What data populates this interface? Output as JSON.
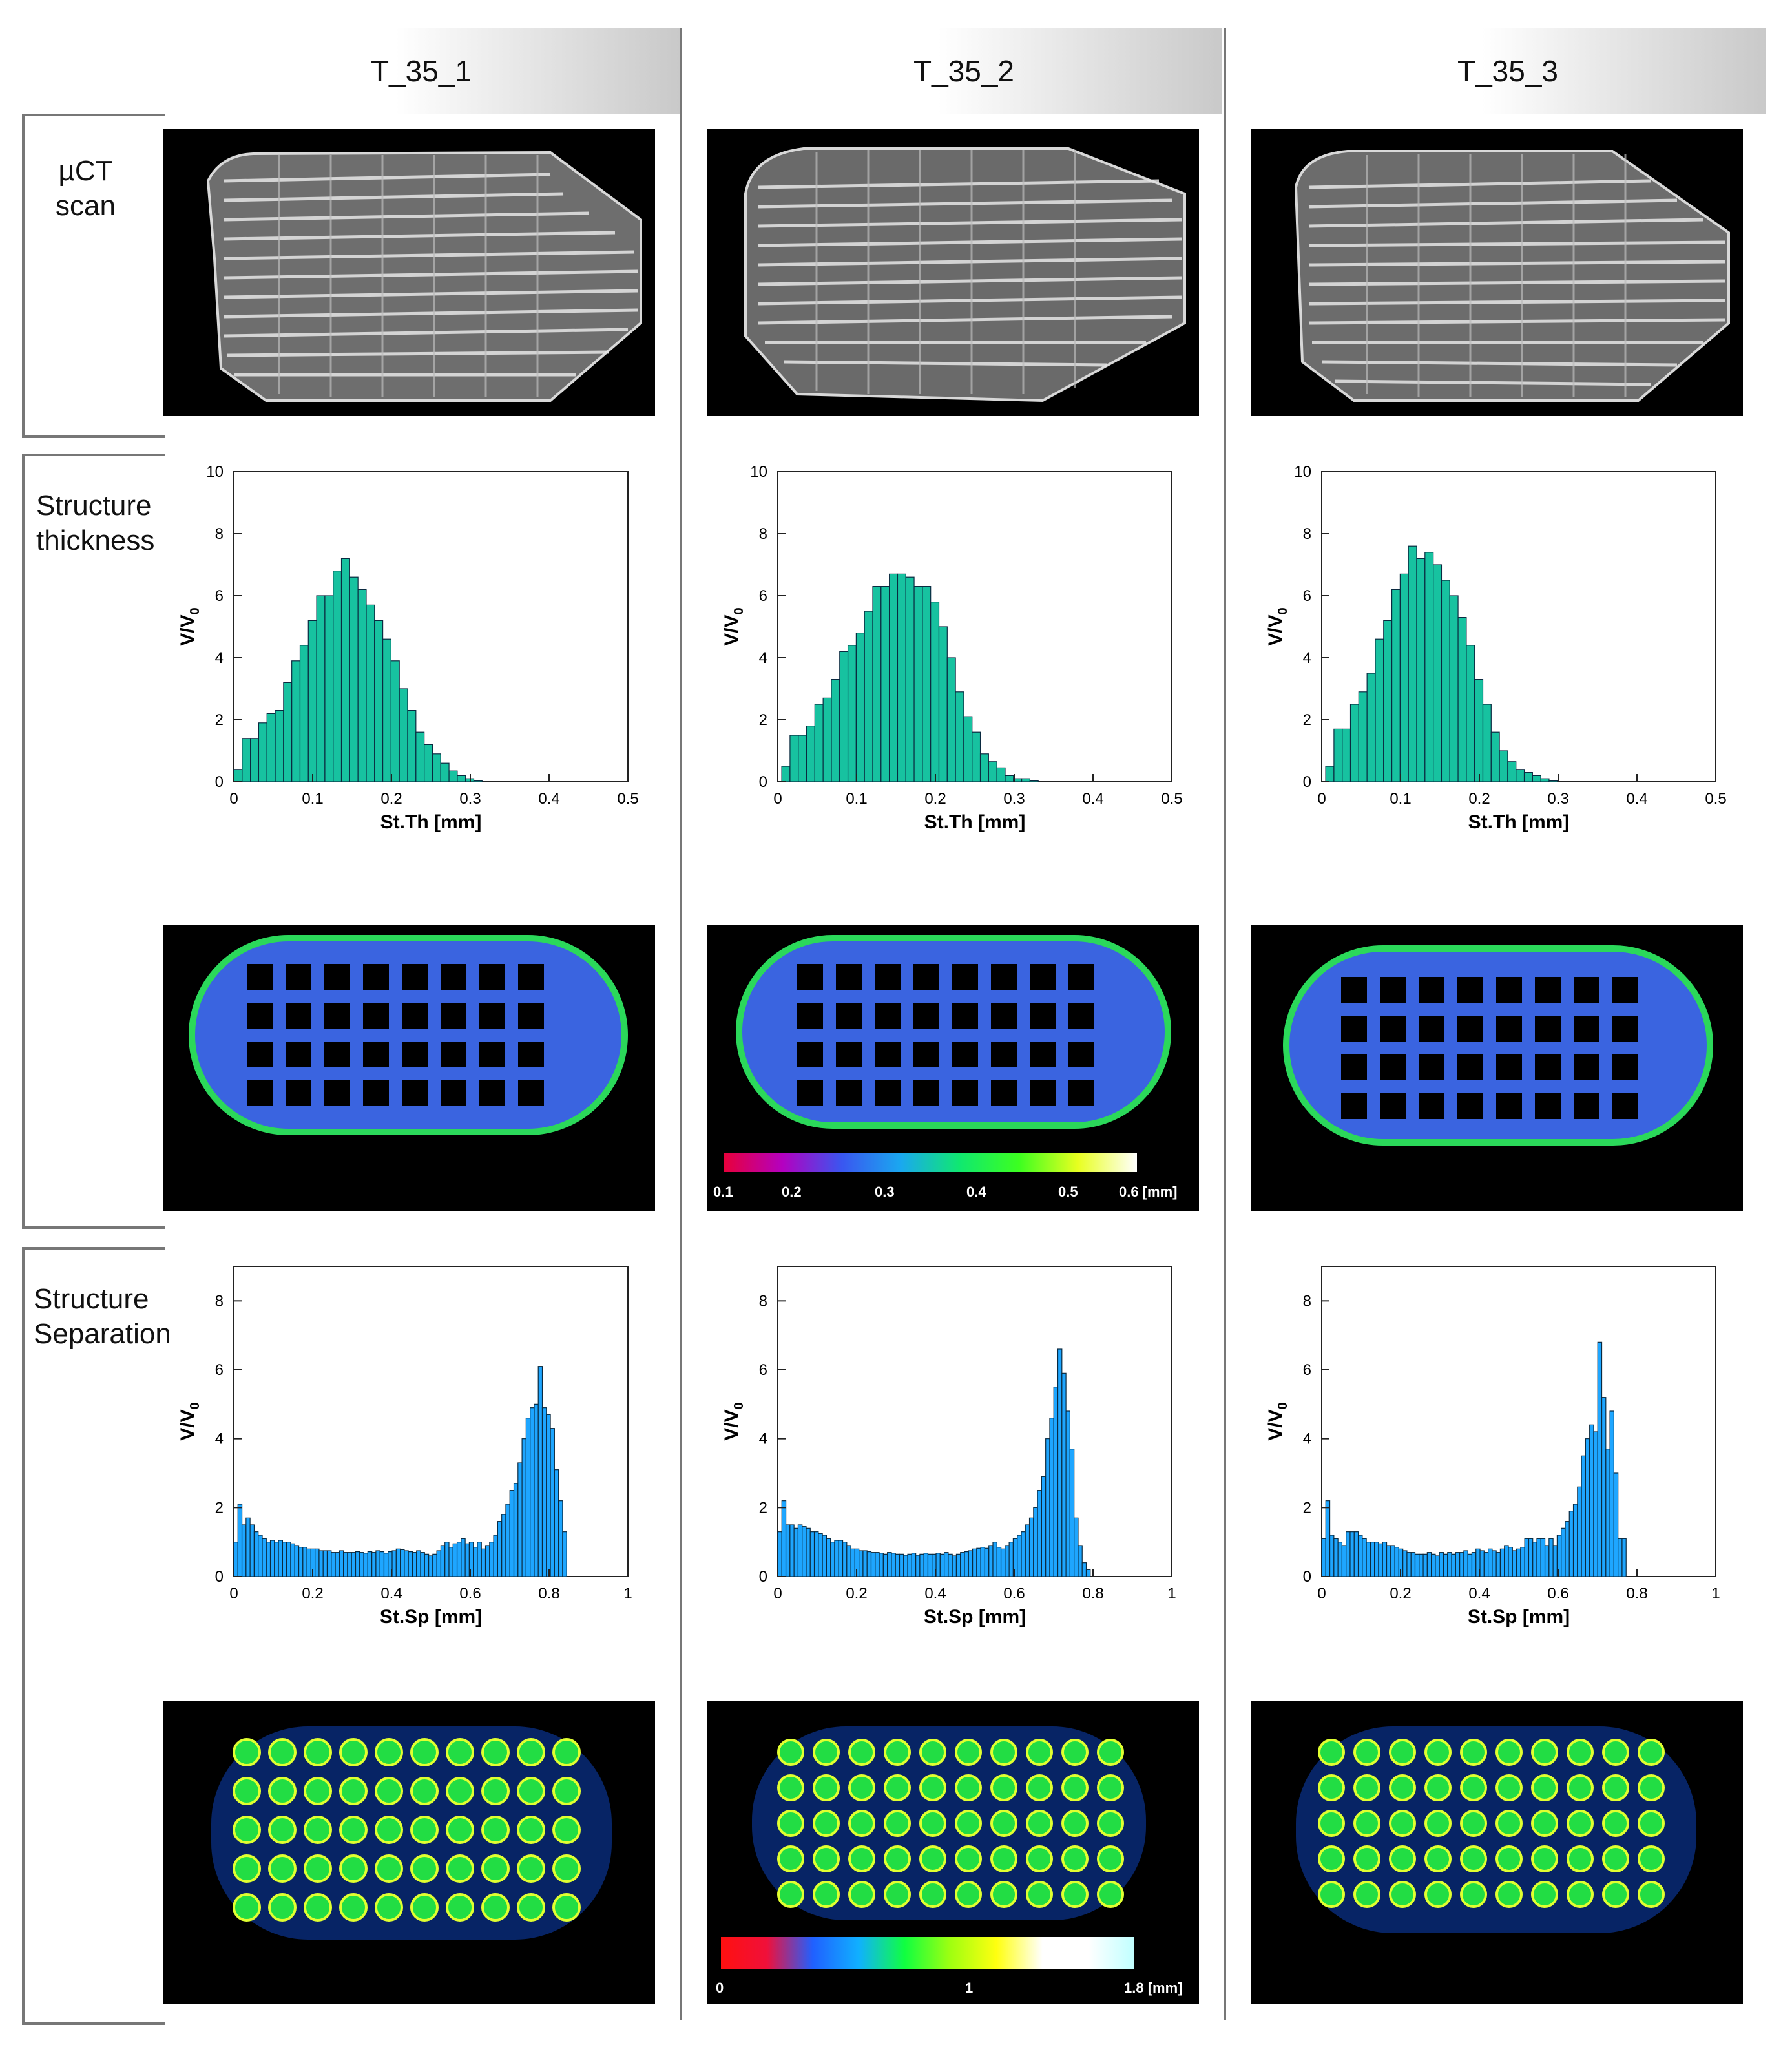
{
  "columns": [
    {
      "title": "T_35_1"
    },
    {
      "title": "T_35_2"
    },
    {
      "title": "T_35_3"
    }
  ],
  "rows": {
    "uct": "µCT\nscan",
    "thickness": "Structure\nthickness",
    "separation": "Structure\nSeparation"
  },
  "colors": {
    "thickness_bar": "#17c2a0",
    "separation_bar": "#1ea6ff",
    "bar_edge": "#0a2a40"
  },
  "chart_data": [
    {
      "id": "th1",
      "type": "bar",
      "title": "T_35_1 Structure thickness",
      "xlabel": "St.Th [mm]",
      "ylabel": "V/V0",
      "xlim": [
        0,
        0.5
      ],
      "ylim": [
        0,
        10
      ],
      "xticks": [
        "0",
        "0.1",
        "0.2",
        "0.3",
        "0.4",
        "0.5"
      ],
      "yticks": [
        "0",
        "2",
        "4",
        "6",
        "8",
        "10"
      ],
      "bin_start": 0,
      "bin_width": 0.0105,
      "values": [
        0.4,
        1.4,
        1.4,
        1.9,
        2.2,
        2.3,
        3.2,
        3.9,
        4.4,
        5.2,
        6.0,
        6.0,
        6.8,
        7.2,
        6.6,
        6.2,
        5.7,
        5.2,
        4.6,
        3.9,
        3.0,
        2.3,
        1.6,
        1.2,
        0.9,
        0.6,
        0.35,
        0.2,
        0.1,
        0.05
      ]
    },
    {
      "id": "th2",
      "type": "bar",
      "title": "T_35_2 Structure thickness",
      "xlabel": "St.Th [mm]",
      "ylabel": "V/V0",
      "xlim": [
        0,
        0.5
      ],
      "ylim": [
        0,
        10
      ],
      "xticks": [
        "0",
        "0.1",
        "0.2",
        "0.3",
        "0.4",
        "0.5"
      ],
      "yticks": [
        "0",
        "2",
        "4",
        "6",
        "8",
        "10"
      ],
      "bin_start": 0.005,
      "bin_width": 0.0105,
      "values": [
        0.5,
        1.5,
        1.5,
        1.8,
        2.5,
        2.7,
        3.3,
        4.2,
        4.4,
        4.8,
        5.5,
        6.3,
        6.3,
        6.7,
        6.7,
        6.6,
        6.3,
        6.3,
        5.8,
        5.0,
        4.0,
        2.9,
        2.1,
        1.6,
        0.9,
        0.65,
        0.45,
        0.2,
        0.1,
        0.1,
        0.05
      ]
    },
    {
      "id": "th3",
      "type": "bar",
      "title": "T_35_3 Structure thickness",
      "xlabel": "St.Th [mm]",
      "ylabel": "V/V0",
      "xlim": [
        0,
        0.5
      ],
      "ylim": [
        0,
        10
      ],
      "xticks": [
        "0",
        "0.1",
        "0.2",
        "0.3",
        "0.4",
        "0.5"
      ],
      "yticks": [
        "0",
        "2",
        "4",
        "6",
        "8",
        "10"
      ],
      "bin_start": 0.005,
      "bin_width": 0.0105,
      "values": [
        0.5,
        1.7,
        1.7,
        2.5,
        2.9,
        3.5,
        4.6,
        5.2,
        6.2,
        6.7,
        7.6,
        7.2,
        7.4,
        7.0,
        6.5,
        6.0,
        5.3,
        4.4,
        3.3,
        2.5,
        1.6,
        1.0,
        0.65,
        0.4,
        0.3,
        0.2,
        0.1,
        0.05
      ]
    },
    {
      "id": "sp1",
      "type": "bar",
      "title": "T_35_1 Structure separation",
      "xlabel": "St.Sp [mm]",
      "ylabel": "V/V0",
      "xlim": [
        0,
        1
      ],
      "ylim": [
        0,
        9
      ],
      "xticks": [
        "0",
        "0.2",
        "0.4",
        "0.6",
        "0.8",
        "1"
      ],
      "yticks": [
        "0",
        "2",
        "4",
        "6",
        "8"
      ],
      "bin_start": 0,
      "bin_width": 0.0103,
      "values": [
        1.0,
        2.1,
        1.5,
        1.7,
        1.5,
        1.3,
        1.2,
        1.1,
        1.0,
        1.05,
        1.0,
        1.05,
        1.0,
        1.0,
        0.95,
        0.9,
        0.85,
        0.85,
        0.8,
        0.8,
        0.8,
        0.75,
        0.75,
        0.75,
        0.7,
        0.7,
        0.75,
        0.7,
        0.7,
        0.7,
        0.72,
        0.7,
        0.68,
        0.72,
        0.7,
        0.75,
        0.72,
        0.68,
        0.72,
        0.75,
        0.8,
        0.78,
        0.75,
        0.72,
        0.7,
        0.75,
        0.7,
        0.65,
        0.6,
        0.65,
        0.75,
        0.9,
        1.0,
        0.85,
        0.95,
        1.0,
        1.1,
        0.95,
        1.0,
        0.85,
        1.0,
        0.8,
        0.9,
        1.0,
        1.2,
        1.6,
        1.8,
        2.1,
        2.5,
        2.7,
        3.3,
        4.0,
        4.6,
        4.9,
        5.0,
        6.1,
        4.9,
        4.7,
        4.3,
        3.1,
        2.2,
        1.3
      ]
    },
    {
      "id": "sp2",
      "type": "bar",
      "title": "T_35_2 Structure separation",
      "xlabel": "St.Sp [mm]",
      "ylabel": "V/V0",
      "xlim": [
        0,
        1
      ],
      "ylim": [
        0,
        9
      ],
      "xticks": [
        "0",
        "0.2",
        "0.4",
        "0.6",
        "0.8",
        "1"
      ],
      "yticks": [
        "0",
        "2",
        "4",
        "6",
        "8"
      ],
      "bin_start": 0,
      "bin_width": 0.0103,
      "values": [
        1.3,
        2.2,
        1.5,
        1.5,
        1.4,
        1.5,
        1.45,
        1.4,
        1.3,
        1.3,
        1.25,
        1.2,
        1.1,
        1.0,
        1.05,
        1.05,
        1.0,
        0.9,
        0.8,
        0.8,
        0.75,
        0.75,
        0.72,
        0.7,
        0.7,
        0.68,
        0.65,
        0.7,
        0.68,
        0.65,
        0.65,
        0.62,
        0.65,
        0.68,
        0.62,
        0.65,
        0.68,
        0.65,
        0.65,
        0.68,
        0.65,
        0.7,
        0.65,
        0.6,
        0.65,
        0.7,
        0.72,
        0.75,
        0.8,
        0.82,
        0.85,
        0.82,
        0.9,
        1.0,
        0.85,
        0.8,
        0.9,
        1.0,
        1.1,
        1.2,
        1.3,
        1.5,
        1.7,
        2.0,
        2.5,
        2.9,
        4.0,
        4.6,
        5.5,
        6.6,
        5.9,
        4.8,
        3.7,
        1.7,
        0.9,
        0.4,
        0.2
      ]
    },
    {
      "id": "sp3",
      "type": "bar",
      "title": "T_35_3 Structure separation",
      "xlabel": "St.Sp [mm]",
      "ylabel": "V/V0",
      "xlim": [
        0,
        1
      ],
      "ylim": [
        0,
        9
      ],
      "xticks": [
        "0",
        "0.2",
        "0.4",
        "0.6",
        "0.8",
        "1"
      ],
      "yticks": [
        "0",
        "2",
        "4",
        "6",
        "8"
      ],
      "bin_start": 0,
      "bin_width": 0.0103,
      "values": [
        1.1,
        2.2,
        1.2,
        1.1,
        1.0,
        0.9,
        1.3,
        1.3,
        1.3,
        1.2,
        1.1,
        1.0,
        1.0,
        1.0,
        0.95,
        1.0,
        0.9,
        0.9,
        0.85,
        0.8,
        0.75,
        0.7,
        0.7,
        0.65,
        0.65,
        0.65,
        0.7,
        0.65,
        0.6,
        0.7,
        0.65,
        0.7,
        0.65,
        0.7,
        0.7,
        0.75,
        0.65,
        0.7,
        0.8,
        0.75,
        0.7,
        0.8,
        0.75,
        0.7,
        0.8,
        0.9,
        0.85,
        0.75,
        0.8,
        0.85,
        1.1,
        1.1,
        1.0,
        1.1,
        1.1,
        0.9,
        1.1,
        0.9,
        1.2,
        1.4,
        1.6,
        1.9,
        2.1,
        2.6,
        3.5,
        4.0,
        4.4,
        4.2,
        6.8,
        5.2,
        3.7,
        4.8,
        3.0,
        1.1,
        1.1
      ]
    }
  ],
  "colorbars": {
    "thickness": {
      "labels": [
        "0.1",
        "0.2",
        "0.3",
        "0.4",
        "0.5",
        "0.6 [mm]"
      ],
      "stops": [
        "#e8003a",
        "#b400c0",
        "#3a56f0",
        "#1aa8f0",
        "#10e870",
        "#3cff20",
        "#e8ff20",
        "#ffffff"
      ]
    },
    "separation": {
      "labels": [
        "0",
        "1",
        "1.8 [mm]"
      ],
      "stops": [
        "#ff1010",
        "#f0103a",
        "#2060ff",
        "#10b0ff",
        "#10ff40",
        "#a0ff10",
        "#ffff10",
        "#ffffff",
        "#ffffff",
        "#c0ffff"
      ]
    }
  }
}
